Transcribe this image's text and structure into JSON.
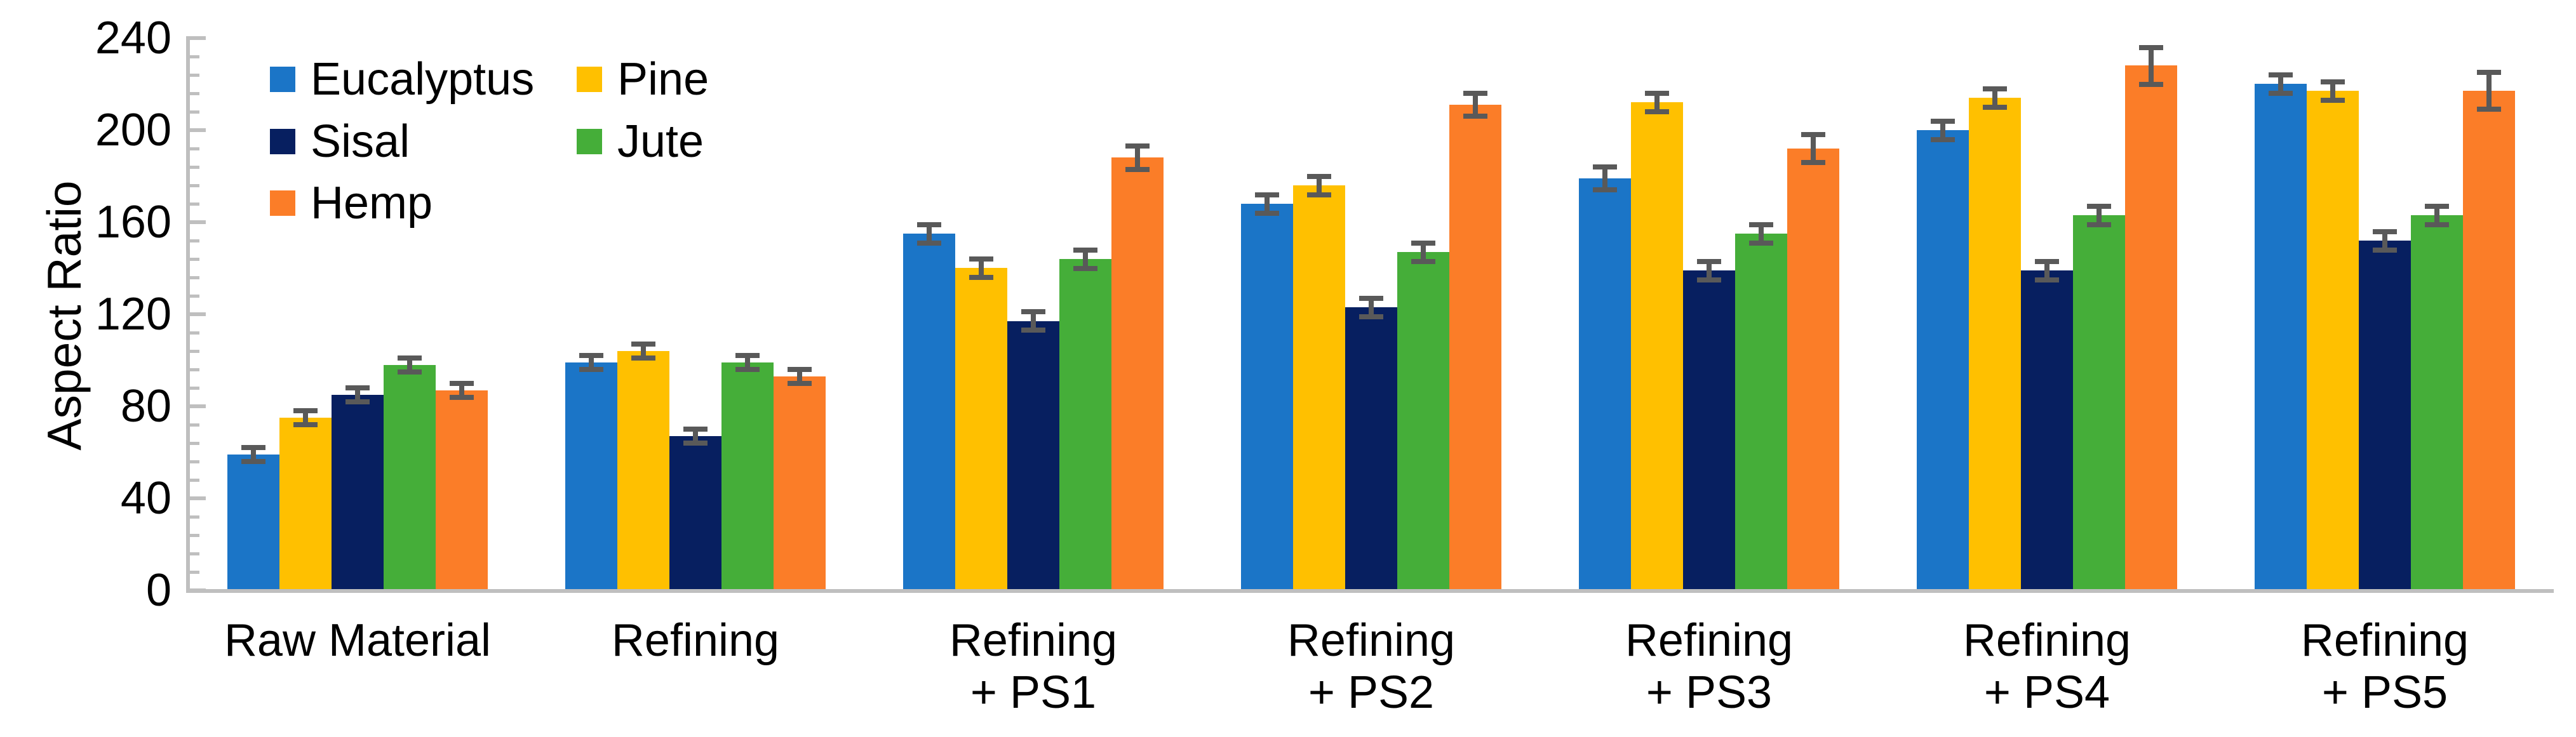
{
  "chart_data": {
    "type": "bar",
    "title": "",
    "xlabel": "",
    "ylabel": "Aspect Ratio",
    "ylim": [
      0,
      240
    ],
    "y_major_unit": 40,
    "y_minor_unit": 8,
    "y_ticks": [
      0,
      40,
      80,
      120,
      160,
      200,
      240
    ],
    "grid": false,
    "legend_position": "top-left-inside",
    "categories": [
      "Raw Material",
      "Refining",
      "Refining + PS1",
      "Refining + PS2",
      "Refining + PS3",
      "Refining + PS4",
      "Refining + PS5"
    ],
    "category_label_lines": [
      [
        "Raw Material"
      ],
      [
        "Refining"
      ],
      [
        "Refining",
        "+ PS1"
      ],
      [
        "Refining",
        "+ PS2"
      ],
      [
        "Refining",
        "+ PS3"
      ],
      [
        "Refining",
        "+ PS4"
      ],
      [
        "Refining",
        "+ PS5"
      ]
    ],
    "series": [
      {
        "name": "Eucalyptus",
        "color": "#1B75C7",
        "values": [
          59,
          99,
          155,
          168,
          179,
          200,
          220
        ],
        "errors": [
          3,
          3,
          4,
          4,
          5,
          4,
          4
        ]
      },
      {
        "name": "Pine",
        "color": "#FFC000",
        "values": [
          75,
          104,
          140,
          176,
          212,
          214,
          217
        ],
        "errors": [
          3,
          3,
          4,
          4,
          4,
          4,
          4
        ]
      },
      {
        "name": "Sisal",
        "color": "#071F60",
        "values": [
          85,
          67,
          117,
          123,
          139,
          139,
          152
        ],
        "errors": [
          3,
          3,
          4,
          4,
          4,
          4,
          4
        ]
      },
      {
        "name": "Jute",
        "color": "#45AE39",
        "values": [
          98,
          99,
          144,
          147,
          155,
          163,
          163
        ],
        "errors": [
          3,
          3,
          4,
          4,
          4,
          4,
          4
        ]
      },
      {
        "name": "Hemp",
        "color": "#FB7D28",
        "values": [
          87,
          93,
          188,
          211,
          192,
          228,
          217
        ],
        "errors": [
          3,
          3,
          5,
          5,
          6,
          8,
          8
        ]
      }
    ],
    "legend_columns": [
      [
        "Eucalyptus",
        "Sisal",
        "Hemp"
      ],
      [
        "Pine",
        "Jute"
      ]
    ],
    "error_bar_color": "#595959",
    "axis_color": "#BFBFBF",
    "text_color": "#000000",
    "background_color": "#FFFFFF"
  }
}
